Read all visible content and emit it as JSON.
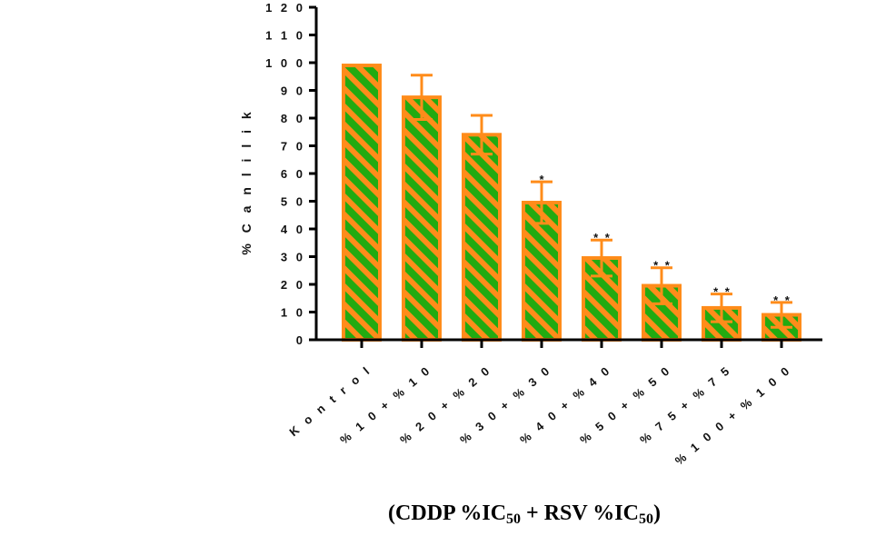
{
  "chart_data": {
    "type": "bar",
    "categories": [
      "K o n t r o l",
      "% 1 0 + % 1 0",
      "% 2 0 + % 2 0",
      "% 3 0 + % 3 0",
      "% 4 0 + % 4 0",
      "% 5 0 + % 5 0",
      "% 7 5 + % 7 5",
      "% 1 0 0 + % 1 0 0"
    ],
    "values": [
      99,
      87.5,
      74,
      49.5,
      29.5,
      19.5,
      11.5,
      9
    ],
    "errors": [
      0,
      8,
      7,
      7.5,
      6.5,
      6.5,
      5,
      4.5
    ],
    "significance": [
      "",
      "",
      "",
      "*",
      "* *",
      "* *",
      "* *",
      "* *"
    ],
    "ylabel": "% C a n l i l i k",
    "ylim": [
      0,
      120
    ],
    "yticks": [
      "0",
      "1 0",
      "2 0",
      "3 0",
      "4 0",
      "5 0",
      "6 0",
      "7 0",
      "8 0",
      "9 0",
      "1 0 0",
      "1 1 0",
      "1 2 0"
    ],
    "xlabel_parts": {
      "open": "(CDDP %IC",
      "sub1": "50",
      "mid": " + RSV %IC",
      "sub2": "50",
      "close": ")"
    },
    "grid": false,
    "legend": "none",
    "colors": {
      "fill": "#22aa11",
      "stripe_and_edge": "#ff8c1a",
      "axis": "#000000"
    }
  }
}
